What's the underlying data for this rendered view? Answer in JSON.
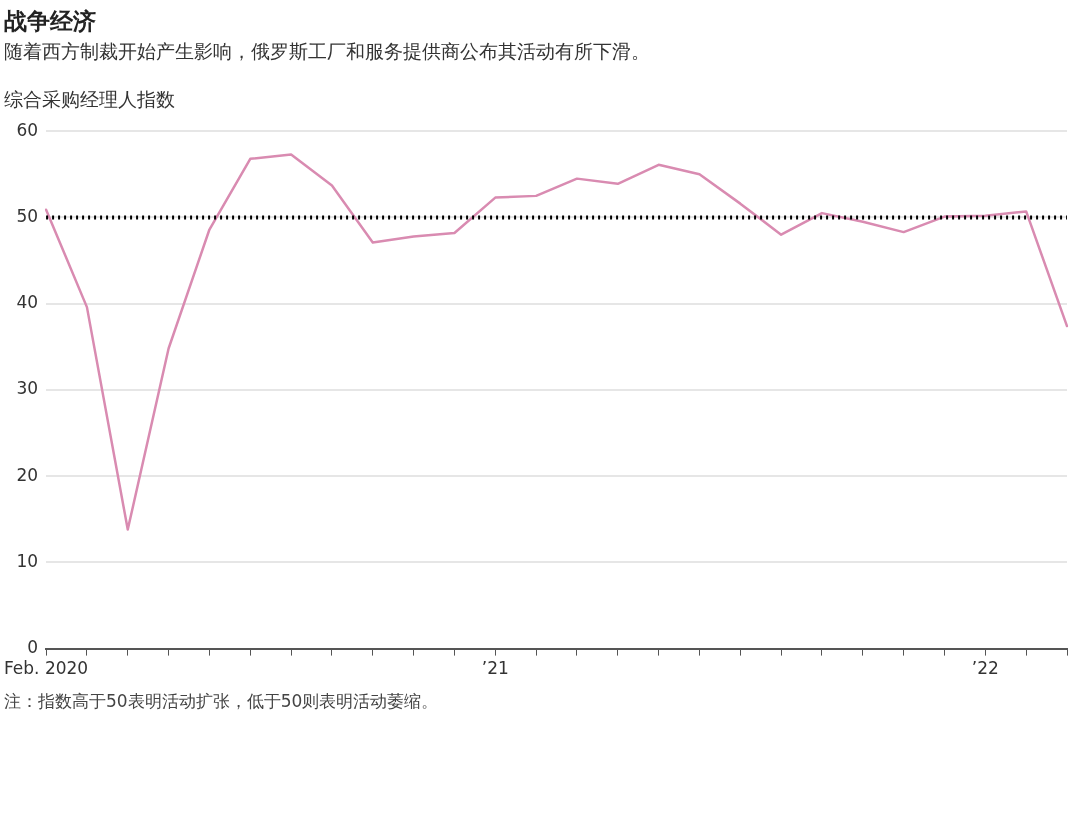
{
  "chart_data": {
    "type": "line",
    "title": "战争经济",
    "subtitle": "随着西方制裁开始产生影响，俄罗斯工厂和服务提供商公布其活动有所下滑。",
    "ylabel": "综合采购经理人指数",
    "categories": [
      "Feb. 2020",
      null,
      null,
      null,
      null,
      null,
      null,
      null,
      null,
      null,
      null,
      "’21",
      null,
      null,
      null,
      null,
      null,
      null,
      null,
      null,
      null,
      null,
      null,
      "’22",
      null,
      null
    ],
    "series": [
      {
        "color": "#d98bb1",
        "values": [
          50.9,
          39.6,
          13.8,
          34.8,
          48.6,
          56.8,
          57.3,
          53.7,
          47.1,
          47.8,
          48.2,
          52.3,
          52.5,
          54.5,
          53.9,
          56.1,
          55.0,
          51.6,
          48.0,
          50.5,
          49.5,
          48.3,
          50.1,
          50.2,
          50.7,
          37.4
        ]
      }
    ],
    "ylim": [
      0,
      60
    ],
    "yticks": [
      0,
      10,
      20,
      30,
      40,
      50,
      60
    ],
    "grid": "y",
    "legend": false,
    "marker": "none",
    "line_style": "solid",
    "ref_lines": [
      {
        "axis": "y",
        "value": 50,
        "color": "#000000",
        "line_style": "dotted"
      }
    ],
    "annotations": [
      "注：指数高于50表明活动扩张，低于50则表明活动萎缩。"
    ]
  }
}
